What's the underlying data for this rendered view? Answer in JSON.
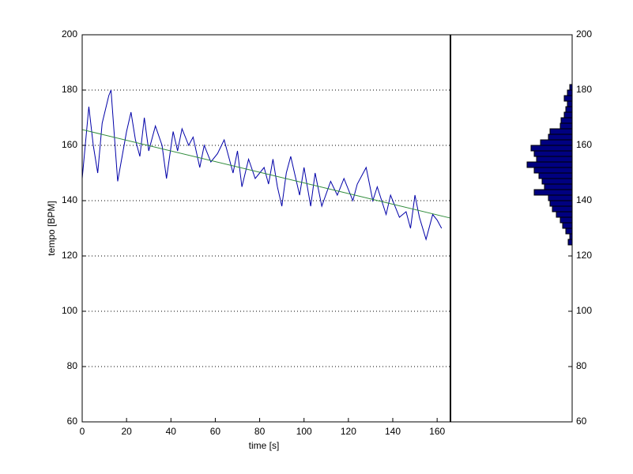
{
  "chart_data": [
    {
      "type": "line",
      "xlabel": "time [s]",
      "ylabel": "tempo [BPM]",
      "xlim": [
        0,
        166
      ],
      "xticks": [
        0,
        20,
        40,
        60,
        80,
        100,
        120,
        140,
        160
      ],
      "ylim": [
        60,
        200
      ],
      "yticks": [
        60,
        80,
        100,
        120,
        140,
        160,
        180,
        200
      ],
      "grid": true,
      "series": [
        {
          "color": "#0000a8",
          "x": [
            0,
            3,
            5,
            7,
            9,
            12,
            13,
            16,
            20,
            22,
            24,
            26,
            28,
            30,
            33,
            36,
            38,
            41,
            43,
            45,
            48,
            50,
            53,
            55,
            58,
            61,
            64,
            66,
            68,
            70,
            72,
            75,
            78,
            82,
            84,
            86,
            88,
            90,
            92,
            94,
            98,
            100,
            103,
            105,
            108,
            112,
            115,
            118,
            122,
            124,
            128,
            131,
            133,
            137,
            139,
            143,
            146,
            148,
            150,
            152,
            155,
            158,
            160,
            162
          ],
          "values": [
            148,
            174,
            160,
            150,
            168,
            178,
            180,
            147,
            165,
            172,
            162,
            156,
            170,
            158,
            167,
            160,
            148,
            165,
            158,
            166,
            160,
            163,
            152,
            160,
            154,
            157,
            162,
            156,
            150,
            158,
            145,
            155,
            148,
            152,
            146,
            155,
            145,
            138,
            150,
            156,
            142,
            152,
            138,
            150,
            138,
            147,
            142,
            148,
            140,
            146,
            152,
            140,
            145,
            135,
            142,
            134,
            136,
            130,
            142,
            134,
            126,
            135,
            133,
            130
          ]
        },
        {
          "color": "#2e8b3a",
          "x": [
            0,
            166
          ],
          "values": [
            165.7,
            133.7
          ]
        }
      ]
    },
    {
      "type": "histogram",
      "orientation": "horizontal",
      "color": "#000080",
      "bins": [
        124,
        126,
        128,
        130,
        132,
        134,
        136,
        138,
        140,
        142,
        144,
        146,
        148,
        150,
        152,
        154,
        156,
        158,
        160,
        162,
        164,
        166,
        168,
        170,
        172,
        174,
        176,
        178,
        180,
        182
      ],
      "values": [
        5,
        3,
        8,
        12,
        15,
        20,
        25,
        28,
        30,
        48,
        35,
        38,
        42,
        48,
        57,
        45,
        48,
        52,
        40,
        30,
        28,
        15,
        14,
        10,
        8,
        6,
        10,
        6,
        3
      ],
      "xlim": [
        0,
        154
      ],
      "ylim": [
        60,
        200
      ],
      "yticks": [
        60,
        80,
        100,
        120,
        140,
        160,
        180,
        200
      ]
    }
  ]
}
